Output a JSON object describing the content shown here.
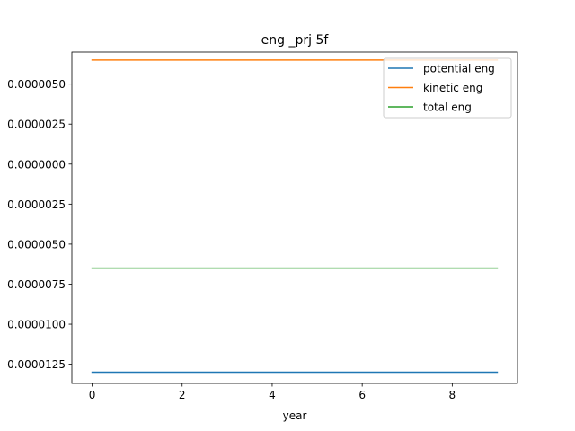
{
  "chart_data": {
    "type": "line",
    "title": "eng _prj 5f",
    "xlabel": "year",
    "ylabel": "",
    "xlim": [
      -0.45,
      9.45
    ],
    "ylim": [
      -1.37e-05,
      7e-06
    ],
    "xticks": [
      0,
      2,
      4,
      6,
      8
    ],
    "xtick_labels": [
      "0",
      "2",
      "4",
      "6",
      "8"
    ],
    "yticks": [
      5e-06,
      2.5e-06,
      0.0,
      -2.5e-06,
      -5e-06,
      -7.5e-06,
      -1e-05,
      -1.25e-05
    ],
    "ytick_labels": [
      "0.0000050",
      "0.0000025",
      "0.0000000",
      "0.0000025",
      "0.0000050",
      "0.0000075",
      "0.0000100",
      "0.0000125"
    ],
    "x": [
      0,
      1,
      2,
      3,
      4,
      5,
      6,
      7,
      8,
      9
    ],
    "series": [
      {
        "name": "potential eng",
        "color": "#1f77b4",
        "values": [
          -1.3e-05,
          -1.3e-05,
          -1.3e-05,
          -1.3e-05,
          -1.3e-05,
          -1.3e-05,
          -1.3e-05,
          -1.3e-05,
          -1.3e-05,
          -1.3e-05
        ]
      },
      {
        "name": "kinetic eng",
        "color": "#ff7f0e",
        "values": [
          6.5e-06,
          6.5e-06,
          6.5e-06,
          6.5e-06,
          6.5e-06,
          6.5e-06,
          6.5e-06,
          6.5e-06,
          6.5e-06,
          6.5e-06
        ]
      },
      {
        "name": "total eng",
        "color": "#2ca02c",
        "values": [
          -6.5e-06,
          -6.5e-06,
          -6.5e-06,
          -6.5e-06,
          -6.5e-06,
          -6.5e-06,
          -6.5e-06,
          -6.5e-06,
          -6.5e-06,
          -6.5e-06
        ]
      }
    ],
    "legend_position": "top-right",
    "grid": false
  }
}
